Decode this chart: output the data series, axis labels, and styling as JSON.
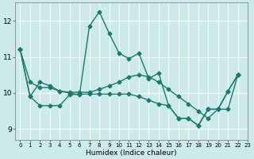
{
  "xlabel": "Humidex (Indice chaleur)",
  "bg_color": "#cceaea",
  "grid_color": "#ffffff",
  "line_color": "#1a7a6e",
  "xlim": [
    -0.5,
    23
  ],
  "ylim": [
    8.7,
    12.5
  ],
  "yticks": [
    9,
    10,
    11,
    12
  ],
  "xticks": [
    0,
    1,
    2,
    3,
    4,
    5,
    6,
    7,
    8,
    9,
    10,
    11,
    12,
    13,
    14,
    15,
    16,
    17,
    18,
    19,
    20,
    21,
    22,
    23
  ],
  "series": [
    [
      11.2,
      9.9,
      10.3,
      10.2,
      10.05,
      10.0,
      9.95,
      11.85,
      12.25,
      11.65,
      11.1,
      10.95,
      11.1,
      10.4,
      10.55,
      9.65,
      9.3,
      9.3,
      9.1,
      9.55,
      9.55,
      10.05,
      10.5
    ],
    [
      11.2,
      10.3,
      10.15,
      10.15,
      10.05,
      10.02,
      10.02,
      10.02,
      10.1,
      10.2,
      10.3,
      10.45,
      10.5,
      10.45,
      10.3,
      10.1,
      9.9,
      9.7,
      9.5,
      9.3,
      9.55,
      10.05,
      10.5
    ],
    [
      11.2,
      9.9,
      9.65,
      9.65,
      9.65,
      9.95,
      9.97,
      9.97,
      9.97,
      9.97,
      9.97,
      9.97,
      9.9,
      9.8,
      9.7,
      9.65,
      9.3,
      9.3,
      9.1,
      9.55,
      9.55,
      9.55,
      10.5
    ]
  ],
  "marker": "D",
  "markersize": 2.5,
  "linewidth": 1.0
}
